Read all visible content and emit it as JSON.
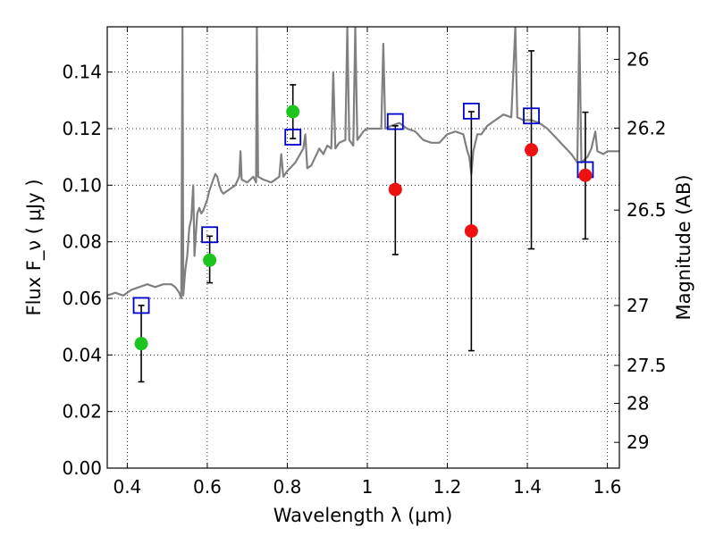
{
  "chart_data": {
    "type": "scatter",
    "title": "",
    "xlabel": "Wavelength  λ (μm)",
    "ylabel": "Flux  F_ν  ( μJy )",
    "ylabel_right": "Magnitude (AB)",
    "xlim": [
      0.35,
      1.63
    ],
    "ylim": [
      0.0,
      0.156
    ],
    "grid": true,
    "x_ticks": [
      0.4,
      0.6,
      0.8,
      1.0,
      1.2,
      1.4,
      1.6
    ],
    "x_tick_labels": [
      "0.4",
      "0.6",
      "0.8",
      "1",
      "1.2",
      "1.4",
      "1.6"
    ],
    "y_ticks": [
      0.0,
      0.02,
      0.04,
      0.06,
      0.08,
      0.1,
      0.12,
      0.14
    ],
    "y_tick_labels": [
      "0.00",
      "0.02",
      "0.04",
      "0.06",
      "0.08",
      "0.10",
      "0.12",
      "0.14"
    ],
    "right_ticks": [
      {
        "label": "26",
        "flux": 0.1445
      },
      {
        "label": "26.2",
        "flux": 0.1202
      },
      {
        "label": "26.5",
        "flux": 0.0912
      },
      {
        "label": "27",
        "flux": 0.0575
      },
      {
        "label": "27.5",
        "flux": 0.0363
      },
      {
        "label": "28",
        "flux": 0.0229
      },
      {
        "label": "29",
        "flux": 0.0091
      }
    ],
    "series": [
      {
        "name": "observed (green)",
        "color": "#1dc41d",
        "points": [
          {
            "x": 0.435,
            "y": 0.044,
            "err_lo": 0.0305,
            "err_hi": 0.0575
          },
          {
            "x": 0.606,
            "y": 0.0735,
            "err_lo": 0.0655,
            "err_hi": 0.082
          },
          {
            "x": 0.814,
            "y": 0.126,
            "err_lo": 0.1165,
            "err_hi": 0.1355
          }
        ]
      },
      {
        "name": "observed (red)",
        "color": "#ee1111",
        "points": [
          {
            "x": 1.07,
            "y": 0.0985,
            "err_lo": 0.0755,
            "err_hi": 0.121
          },
          {
            "x": 1.26,
            "y": 0.0838,
            "err_lo": 0.0415,
            "err_hi": 0.126
          },
          {
            "x": 1.41,
            "y": 0.1125,
            "err_lo": 0.0775,
            "err_hi": 0.1475
          },
          {
            "x": 1.545,
            "y": 0.1035,
            "err_lo": 0.081,
            "err_hi": 0.1258
          }
        ]
      },
      {
        "name": "model (blue squares)",
        "color": "#0000cc",
        "points": [
          {
            "x": 0.435,
            "y": 0.0575
          },
          {
            "x": 0.606,
            "y": 0.0825
          },
          {
            "x": 0.814,
            "y": 0.117
          },
          {
            "x": 1.07,
            "y": 0.1225
          },
          {
            "x": 1.26,
            "y": 0.1262
          },
          {
            "x": 1.41,
            "y": 0.1245
          },
          {
            "x": 1.545,
            "y": 0.1055
          }
        ]
      }
    ],
    "sed_line": {
      "name": "template spectrum",
      "color": "#808080",
      "points": [
        [
          0.35,
          0.061
        ],
        [
          0.37,
          0.062
        ],
        [
          0.39,
          0.061
        ],
        [
          0.41,
          0.063
        ],
        [
          0.43,
          0.064
        ],
        [
          0.45,
          0.065
        ],
        [
          0.47,
          0.064
        ],
        [
          0.49,
          0.065
        ],
        [
          0.51,
          0.065
        ],
        [
          0.52,
          0.064
        ],
        [
          0.53,
          0.062
        ],
        [
          0.535,
          0.06
        ],
        [
          0.538,
          0.156
        ],
        [
          0.54,
          0.061
        ],
        [
          0.545,
          0.07
        ],
        [
          0.55,
          0.075
        ],
        [
          0.555,
          0.085
        ],
        [
          0.56,
          0.088
        ],
        [
          0.565,
          0.1
        ],
        [
          0.568,
          0.075
        ],
        [
          0.575,
          0.09
        ],
        [
          0.58,
          0.092
        ],
        [
          0.585,
          0.09
        ],
        [
          0.59,
          0.091
        ],
        [
          0.595,
          0.093
        ],
        [
          0.6,
          0.095
        ],
        [
          0.605,
          0.098
        ],
        [
          0.61,
          0.1
        ],
        [
          0.615,
          0.102
        ],
        [
          0.62,
          0.104
        ],
        [
          0.625,
          0.103
        ],
        [
          0.63,
          0.1
        ],
        [
          0.635,
          0.098
        ],
        [
          0.64,
          0.097
        ],
        [
          0.65,
          0.098
        ],
        [
          0.66,
          0.099
        ],
        [
          0.67,
          0.1
        ],
        [
          0.68,
          0.103
        ],
        [
          0.683,
          0.112
        ],
        [
          0.686,
          0.102
        ],
        [
          0.7,
          0.101
        ],
        [
          0.715,
          0.103
        ],
        [
          0.722,
          0.101
        ],
        [
          0.724,
          0.156
        ],
        [
          0.727,
          0.103
        ],
        [
          0.74,
          0.102
        ],
        [
          0.76,
          0.101
        ],
        [
          0.78,
          0.103
        ],
        [
          0.785,
          0.111
        ],
        [
          0.79,
          0.103
        ],
        [
          0.8,
          0.105
        ],
        [
          0.82,
          0.108
        ],
        [
          0.84,
          0.113
        ],
        [
          0.845,
          0.118
        ],
        [
          0.85,
          0.106
        ],
        [
          0.86,
          0.107
        ],
        [
          0.88,
          0.113
        ],
        [
          0.89,
          0.111
        ],
        [
          0.9,
          0.114
        ],
        [
          0.91,
          0.113
        ],
        [
          0.915,
          0.14
        ],
        [
          0.92,
          0.113
        ],
        [
          0.93,
          0.115
        ],
        [
          0.945,
          0.116
        ],
        [
          0.95,
          0.156
        ],
        [
          0.955,
          0.116
        ],
        [
          0.965,
          0.114
        ],
        [
          0.97,
          0.156
        ],
        [
          0.975,
          0.116
        ],
        [
          0.99,
          0.119
        ],
        [
          1.0,
          0.12
        ],
        [
          1.02,
          0.12
        ],
        [
          1.035,
          0.12
        ],
        [
          1.04,
          0.15
        ],
        [
          1.045,
          0.12
        ],
        [
          1.06,
          0.121
        ],
        [
          1.08,
          0.122
        ],
        [
          1.1,
          0.12
        ],
        [
          1.12,
          0.119
        ],
        [
          1.14,
          0.116
        ],
        [
          1.16,
          0.115
        ],
        [
          1.18,
          0.115
        ],
        [
          1.2,
          0.118
        ],
        [
          1.22,
          0.119
        ],
        [
          1.24,
          0.118
        ],
        [
          1.25,
          0.112
        ],
        [
          1.255,
          0.11
        ],
        [
          1.26,
          0.104
        ],
        [
          1.265,
          0.112
        ],
        [
          1.275,
          0.118
        ],
        [
          1.285,
          0.118
        ],
        [
          1.3,
          0.121
        ],
        [
          1.32,
          0.123
        ],
        [
          1.34,
          0.125
        ],
        [
          1.36,
          0.124
        ],
        [
          1.37,
          0.156
        ],
        [
          1.375,
          0.124
        ],
        [
          1.39,
          0.123
        ],
        [
          1.41,
          0.123
        ],
        [
          1.43,
          0.122
        ],
        [
          1.45,
          0.12
        ],
        [
          1.47,
          0.117
        ],
        [
          1.49,
          0.114
        ],
        [
          1.51,
          0.111
        ],
        [
          1.525,
          0.108
        ],
        [
          1.53,
          0.156
        ],
        [
          1.535,
          0.108
        ],
        [
          1.55,
          0.11
        ],
        [
          1.56,
          0.113
        ],
        [
          1.57,
          0.119
        ],
        [
          1.575,
          0.112
        ],
        [
          1.59,
          0.111
        ],
        [
          1.6,
          0.112
        ],
        [
          1.615,
          0.112
        ],
        [
          1.63,
          0.112
        ]
      ]
    }
  }
}
